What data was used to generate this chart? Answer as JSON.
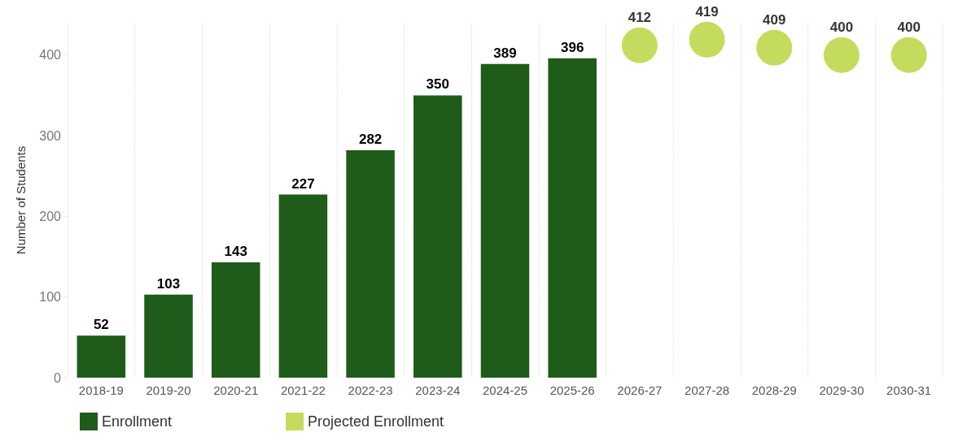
{
  "chart_data": {
    "type": "bar",
    "ylabel": "Number of Students",
    "categories": [
      "2018-19",
      "2019-20",
      "2020-21",
      "2021-22",
      "2022-23",
      "2023-24",
      "2024-25",
      "2025-26",
      "2026-27",
      "2027-28",
      "2028-29",
      "2029-30",
      "2030-31"
    ],
    "series": [
      {
        "name": "Enrollment",
        "color": "#1f5c1a",
        "values": [
          52,
          103,
          143,
          227,
          282,
          350,
          389,
          396,
          null,
          null,
          null,
          null,
          null
        ]
      },
      {
        "name": "Projected Enrollment",
        "type": "scatter",
        "color": "#b5d334",
        "values": [
          null,
          null,
          null,
          null,
          null,
          null,
          null,
          null,
          412,
          419,
          409,
          400,
          400
        ]
      }
    ],
    "ylim": [
      0,
      440
    ],
    "yticks": [
      0,
      100,
      200,
      300,
      400
    ],
    "grid": "x",
    "legend": "bottom left",
    "data_labels": true,
    "marker": "circle"
  }
}
